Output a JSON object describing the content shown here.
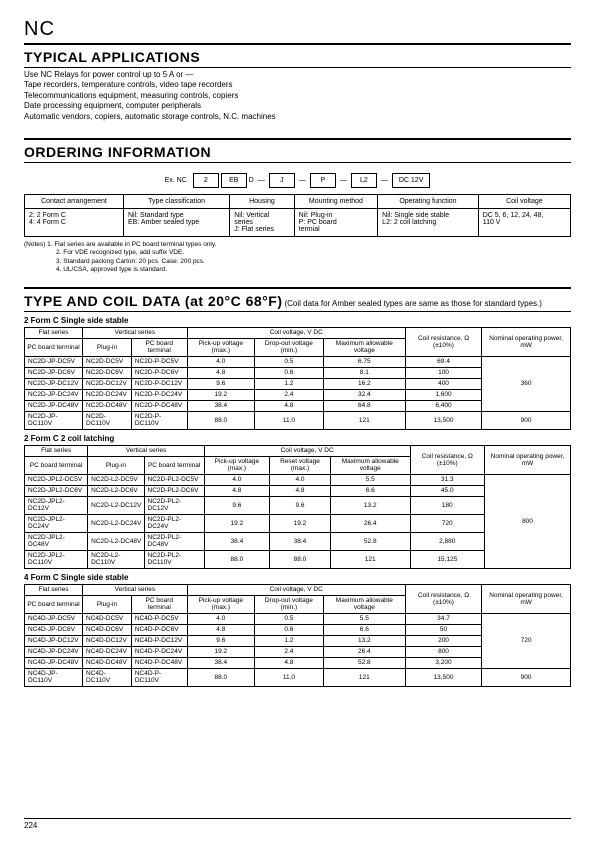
{
  "header": {
    "nc": "NC",
    "page": "224"
  },
  "applications": {
    "title": "TYPICAL APPLICATIONS",
    "lines": [
      "Use NC Relays for power control up to 5 A or —",
      "Tape recorders, temperature controls, video tape recorders",
      "Telecommunications equipment, measuring controls, copiers",
      "Date processing equipment, computer peripherals",
      "Automatic vendors, copiers, automatic storage controls, N.C. machines"
    ]
  },
  "ordering": {
    "title": "ORDERING INFORMATION",
    "example_label": "Ex. NC",
    "boxes": [
      "2",
      "EB",
      "D",
      "J",
      "P",
      "L2",
      "DC 12V"
    ],
    "table_headers": [
      "Contact arrangement",
      "Type classification",
      "Housing",
      "Mounting method",
      "Operating function",
      "Coil voltage"
    ],
    "table_row": [
      "2: 2 Form C\n4: 4 Form C",
      "Nil: Standard type\nEB: Amber sealed type",
      "Nil: Vertical\n  series\nJ: Flat series",
      "Nil: Plug-in\nP: PC board\n  termial",
      "Nil: Single side stable\nL2: 2 coil latching",
      "DC 5, 6, 12, 24, 48,\n110 V"
    ],
    "notes": [
      "(Notes) 1. Flat series are available in PC board terminal types only.",
      "2. For VDE recognized type, add suffix VDE.",
      "3. Standard packing  Carton: 20 pcs. Case: 200 pcs.",
      "4. UL/CSA, approved type is standard."
    ]
  },
  "typecoil": {
    "title": "TYPE AND COIL DATA (at 20°C ",
    "title_gray": "68°F",
    "title_end": ")",
    "note": "(Coil data for Amber sealed types are same as those for standard types.)"
  },
  "t1": {
    "caption": "2 Form C  Single side stable",
    "h_flat": "Flat series",
    "h_vert": "Vertical series",
    "h_coil": "Coil voltage, V DC",
    "h_pcb": "PC board terminal",
    "h_plug": "Plug-in",
    "h_pick": "Pick-up voltage (max.)",
    "h_drop": "Drop-out voltage (min.)",
    "h_max": "Maximum allowable voltage",
    "h_res": "Coil resistance, Ω (±10%)",
    "h_pow": "Nominal operating power, mW",
    "rows": [
      [
        "NC2D-JP-DC5V",
        "NC2D-DC5V",
        "NC2D-P-DC5V",
        "4.0",
        "0.5",
        "6.75",
        "69.4"
      ],
      [
        "NC2D-JP-DC6V",
        "NC2D-DC6V",
        "NC2D-P-DC6V",
        "4.8",
        "0.6",
        "8.1",
        "100"
      ],
      [
        "NC2D-JP-DC12V",
        "NC2D-DC12V",
        "NC2D-P-DC12V",
        "9.6",
        "1.2",
        "16.2",
        "400"
      ],
      [
        "NC2D-JP-DC24V",
        "NC2D-DC24V",
        "NC2D-P-DC24V",
        "19.2",
        "2.4",
        "32.4",
        "1,600"
      ],
      [
        "NC2D-JP-DC48V",
        "NC2D-DC48V",
        "NC2D-P-DC48V",
        "38.4",
        "4.8",
        "64.8",
        "6,400"
      ],
      [
        "NC2D-JP-DC110V",
        "NC2D-DC110V",
        "NC2D-P-DC110V",
        "88.0",
        "11.0",
        "121",
        "13,500"
      ]
    ],
    "pow1": "360",
    "pow2": "900"
  },
  "t2": {
    "caption": "2 Form C  2 coil latching",
    "h_reset": "Reset voltage (max.)",
    "rows": [
      [
        "NC2D-JPL2-DC5V",
        "NC2D-L2-DC5V",
        "NC2D-PL2-DC5V",
        "4.0",
        "4.0",
        "5.5",
        "31.3"
      ],
      [
        "NC2D-JPL2-DC6V",
        "NC2D-L2-DC6V",
        "NC2D-PL2-DC6V",
        "4.8",
        "4.8",
        "6.6",
        "45.0"
      ],
      [
        "NC2D-JPL2-DC12V",
        "NC2D-L2-DC12V",
        "NC2D-PL2-DC12V",
        "9.6",
        "9.6",
        "13.2",
        "180"
      ],
      [
        "NC2D-JPL2-DC24V",
        "NC2D-L2-DC24V",
        "NC2D-PL2-DC24V",
        "19.2",
        "19.2",
        "26.4",
        "720"
      ],
      [
        "NC2D-JPL2-DC48V",
        "NC2D-L2-DC48V",
        "NC2D-PL2-DC48V",
        "38.4",
        "38.4",
        "52.8",
        "2,880"
      ],
      [
        "NC2D-JPL2-DC110V",
        "NC2D-L2-DC110V",
        "NC2D-PL2-DC110V",
        "88.0",
        "88.0",
        "121",
        "15,125"
      ]
    ],
    "pow": "800"
  },
  "t3": {
    "caption": "4 Form C  Single side stable",
    "rows": [
      [
        "NC4D-JP-DC5V",
        "NC4D-DC5V",
        "NC4D-P-DC5V",
        "4.0",
        "0.5",
        "5.5",
        "34.7"
      ],
      [
        "NC4D-JP-DC6V",
        "NC4D-DC6V",
        "NC4D-P-DC6V",
        "4.8",
        "0.6",
        "6.6",
        "50"
      ],
      [
        "NC4D-JP-DC12V",
        "NC4D-DC12V",
        "NC4D-P-DC12V",
        "9.6",
        "1.2",
        "13.2",
        "200"
      ],
      [
        "NC4D-JP-DC24V",
        "NC4D-DC24V",
        "NC4D-P-DC24V",
        "19.2",
        "2.4",
        "26.4",
        "800"
      ],
      [
        "NC4D-JP-DC48V",
        "NC4D-DC48V",
        "NC4D-P-DC48V",
        "38.4",
        "4.8",
        "52.8",
        "3,200"
      ],
      [
        "NC4D-JP-DC110V",
        "NC4D-DC110V",
        "NC4D-P-DC110V",
        "88.0",
        "11.0",
        "121",
        "13,500"
      ]
    ],
    "pow1": "720",
    "pow2": "900"
  }
}
